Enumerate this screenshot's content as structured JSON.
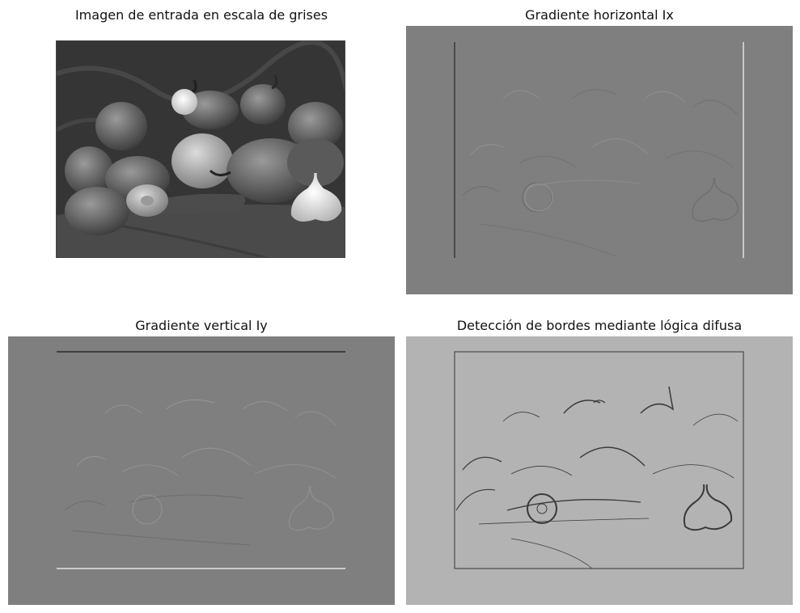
{
  "panels": {
    "input": {
      "title": "Imagen de entrada en escala de grises"
    },
    "ix": {
      "title": "Gradiente horizontal Ix"
    },
    "iy": {
      "title": "Gradiente vertical Iy"
    },
    "edges": {
      "title": "Detección de bordes mediante lógica difusa"
    }
  },
  "colors": {
    "gradient_background": "#7f7f7f",
    "edges_background": "#b3b3b3",
    "input_background": "#3b3b3b"
  }
}
